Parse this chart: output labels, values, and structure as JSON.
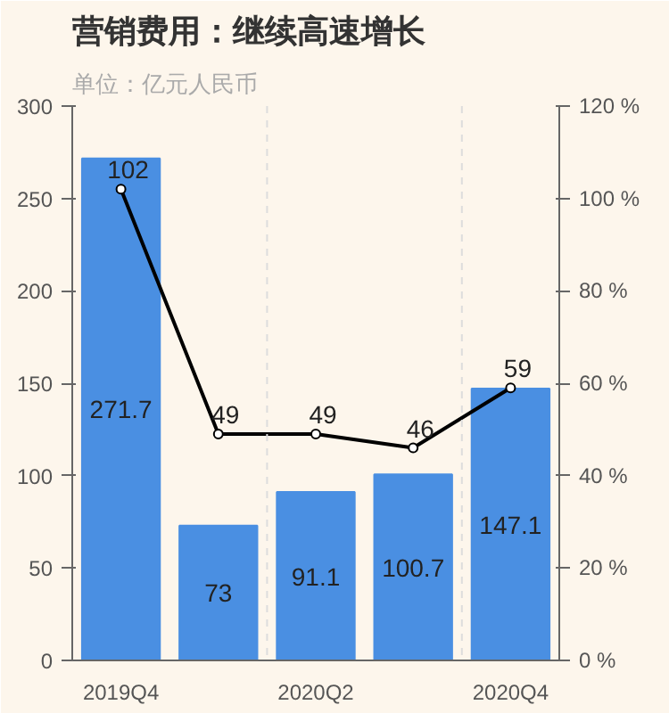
{
  "chart_data": {
    "type": "bar",
    "title": "营销费用：继续高速增长",
    "subtitle": "单位：亿元人民币",
    "categories": [
      "2019Q4",
      null,
      "2020Q2",
      null,
      "2020Q4"
    ],
    "series": [
      {
        "color": "#4a8fe2",
        "values": [
          271.7,
          73,
          91.1,
          100.7,
          147.1
        ]
      },
      {
        "type": "line",
        "axis": "y2",
        "color": "#000000",
        "values": [
          102,
          49,
          49,
          46,
          59
        ],
        "marker": "circle"
      }
    ],
    "data_labels": true,
    "grid": "x",
    "ylim": [
      0,
      300
    ],
    "yticks": [
      0,
      50,
      100,
      150,
      200,
      250,
      300
    ],
    "y2lim": [
      0,
      120
    ],
    "y2ticks": [
      {
        "value": 0,
        "label": "0 %"
      },
      {
        "value": 20,
        "label": "20 %"
      },
      {
        "value": 40,
        "label": "40 %"
      },
      {
        "value": 60,
        "label": "60 %"
      },
      {
        "value": 80,
        "label": "80 %"
      },
      {
        "value": 100,
        "label": "100 %"
      },
      {
        "value": 120,
        "label": "120 %"
      }
    ]
  }
}
